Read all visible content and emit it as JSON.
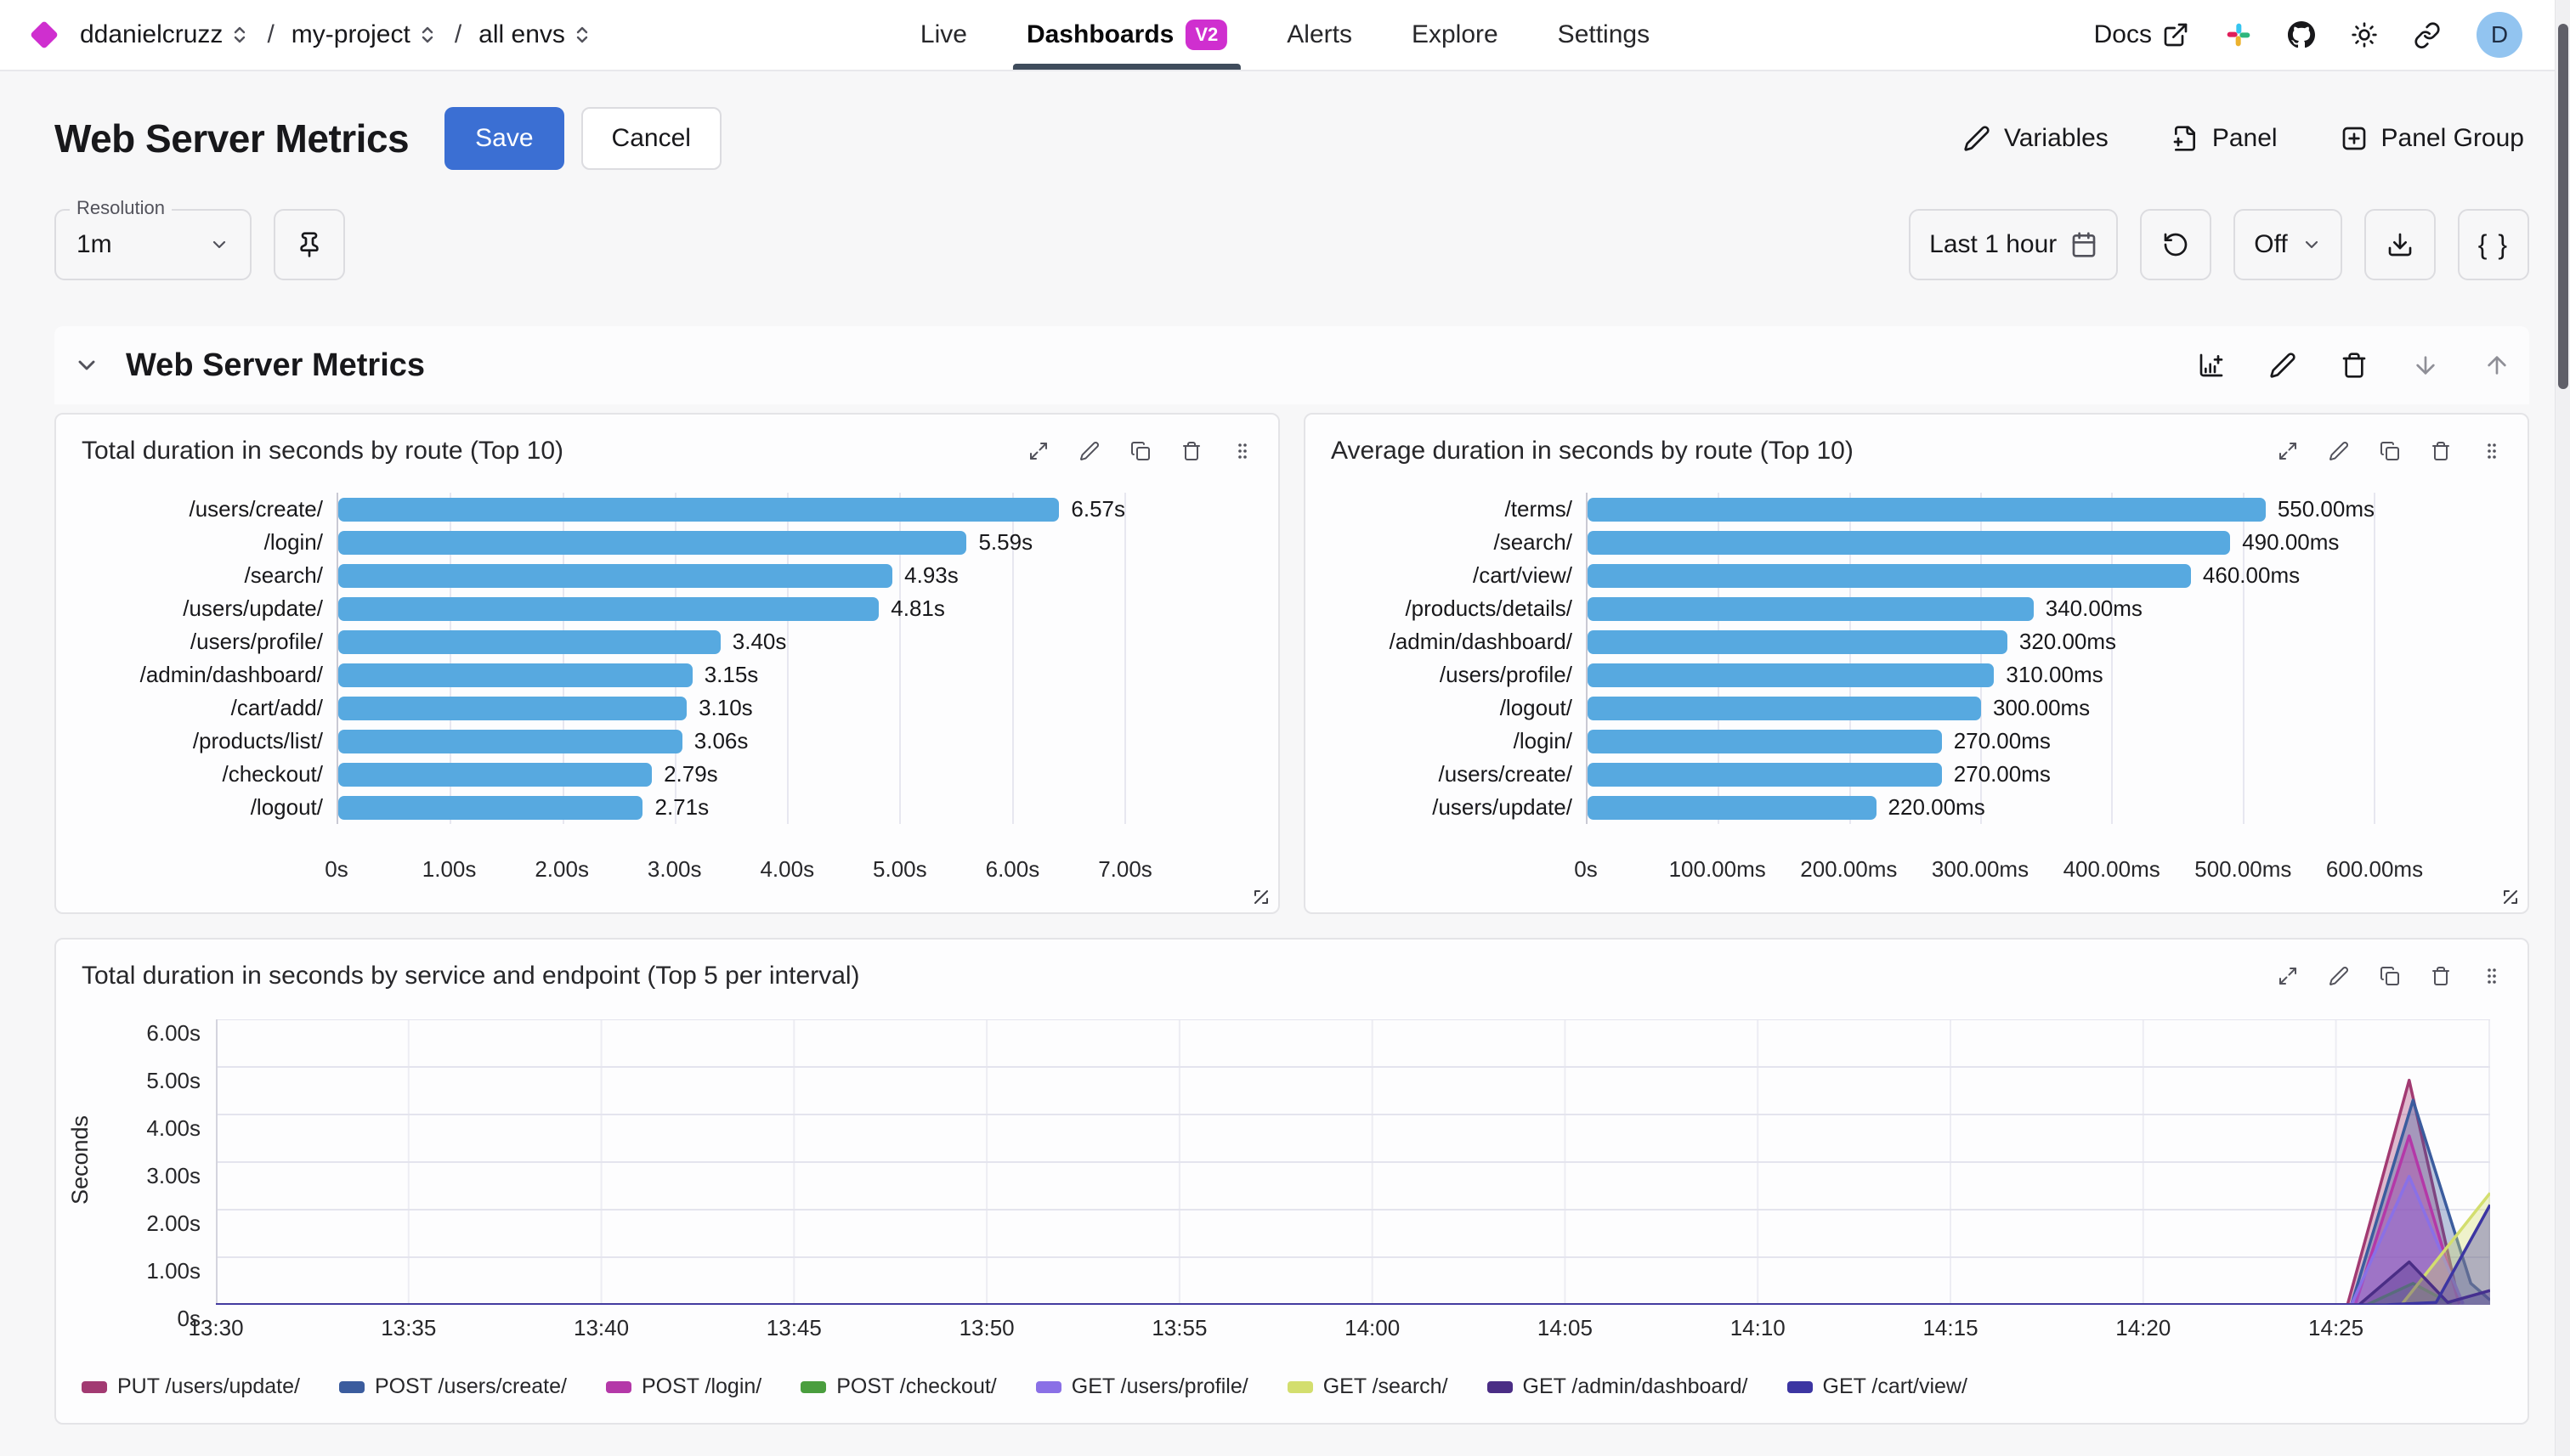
{
  "topbar": {
    "org": "ddanielcruzz",
    "project": "my-project",
    "env": "all envs",
    "separator": "/",
    "nav": [
      {
        "label": "Live"
      },
      {
        "label": "Dashboards",
        "badge": "V2"
      },
      {
        "label": "Alerts"
      },
      {
        "label": "Explore"
      },
      {
        "label": "Settings"
      }
    ],
    "docs_label": "Docs",
    "avatar_initial": "D"
  },
  "header": {
    "title": "Web Server Metrics",
    "save_label": "Save",
    "cancel_label": "Cancel",
    "variables_label": "Variables",
    "panel_label": "Panel",
    "panel_group_label": "Panel Group"
  },
  "toolbar": {
    "resolution_label": "Resolution",
    "resolution_value": "1m",
    "time_range": "Last 1 hour",
    "auto_refresh": "Off",
    "braces_label": "{ }"
  },
  "section": {
    "title": "Web Server Metrics"
  },
  "icons": [
    "chevrons-up-down-icon",
    "external-link-icon",
    "slack-icon",
    "github-icon",
    "sun-icon",
    "link-icon",
    "pencil-icon",
    "file-plus-icon",
    "square-plus-icon",
    "pin-icon",
    "calendar-icon",
    "rotate-ccw-icon",
    "chevron-down-icon",
    "download-icon",
    "chart-plus-icon",
    "trash-icon",
    "arrow-down-icon",
    "arrow-up-icon",
    "expand-icon",
    "copy-icon",
    "grip-icon",
    "resize-icon"
  ],
  "colors": {
    "accent_magenta": "#cf2fcf",
    "primary_button": "#3b6fd3",
    "bar_blue": "#57a9e0",
    "nav_underline": "#3f4c5c"
  },
  "chart_data": [
    {
      "type": "bar",
      "orientation": "horizontal",
      "title": "Total duration in seconds by route (Top 10)",
      "categories": [
        "/users/create/",
        "/login/",
        "/search/",
        "/users/update/",
        "/users/profile/",
        "/admin/dashboard/",
        "/cart/add/",
        "/products/list/",
        "/checkout/",
        "/logout/"
      ],
      "values": [
        6.57,
        5.59,
        4.93,
        4.81,
        3.4,
        3.15,
        3.1,
        3.06,
        2.79,
        2.71
      ],
      "value_labels": [
        "6.57s",
        "5.59s",
        "4.93s",
        "4.81s",
        "3.40s",
        "3.15s",
        "3.10s",
        "3.06s",
        "2.79s",
        "2.71s"
      ],
      "xmax": 7,
      "xticks": [
        "0s",
        "1.00s",
        "2.00s",
        "3.00s",
        "4.00s",
        "5.00s",
        "6.00s",
        "7.00s"
      ],
      "bar_color": "#57a9e0",
      "grid": true
    },
    {
      "type": "bar",
      "orientation": "horizontal",
      "title": "Average duration in seconds by route (Top 10)",
      "categories": [
        "/terms/",
        "/search/",
        "/cart/view/",
        "/products/details/",
        "/admin/dashboard/",
        "/users/profile/",
        "/logout/",
        "/login/",
        "/users/create/",
        "/users/update/"
      ],
      "values": [
        550,
        490,
        460,
        340,
        320,
        310,
        300,
        270,
        270,
        220
      ],
      "value_labels": [
        "550.00ms",
        "490.00ms",
        "460.00ms",
        "340.00ms",
        "320.00ms",
        "310.00ms",
        "300.00ms",
        "270.00ms",
        "270.00ms",
        "220.00ms"
      ],
      "xmax": 600,
      "xticks": [
        "0s",
        "100.00ms",
        "200.00ms",
        "300.00ms",
        "400.00ms",
        "500.00ms",
        "600.00ms"
      ],
      "bar_color": "#57a9e0",
      "grid": true
    },
    {
      "type": "area",
      "title": "Total duration in seconds by service and endpoint (Top 5 per interval)",
      "ylabel": "Seconds",
      "yticks": [
        "0s",
        "1.00s",
        "2.00s",
        "3.00s",
        "4.00s",
        "5.00s",
        "6.00s"
      ],
      "ymax": 6,
      "xdomain": [
        0,
        59
      ],
      "xtick_minutes": [
        0,
        5,
        10,
        15,
        20,
        25,
        30,
        35,
        40,
        45,
        50,
        55
      ],
      "xtick_labels": [
        "13:30",
        "13:35",
        "13:40",
        "13:45",
        "13:50",
        "13:55",
        "14:00",
        "14:05",
        "14:10",
        "14:15",
        "14:20",
        "14:25"
      ],
      "legend_position": "bottom",
      "grid": true,
      "series": [
        {
          "name": "PUT /users/update/",
          "color": "#a23a72",
          "points": [
            [
              0,
              0
            ],
            [
              55.3,
              0
            ],
            [
              56.9,
              4.72
            ],
            [
              58.2,
              0.02
            ]
          ]
        },
        {
          "name": "POST /users/create/",
          "color": "#3b5c9e",
          "points": [
            [
              0,
              0
            ],
            [
              55.4,
              0
            ],
            [
              57.0,
              4.3
            ],
            [
              58.5,
              0.45
            ],
            [
              59,
              0.1
            ]
          ]
        },
        {
          "name": "POST /login/",
          "color": "#b438a8",
          "points": [
            [
              0,
              0
            ],
            [
              55.5,
              0
            ],
            [
              56.9,
              3.55
            ],
            [
              58.2,
              0.02
            ]
          ]
        },
        {
          "name": "POST /checkout/",
          "color": "#4a9e3e",
          "points": [
            [
              0,
              0
            ],
            [
              55.8,
              0
            ],
            [
              57.0,
              0.45
            ],
            [
              58.0,
              0.02
            ]
          ]
        },
        {
          "name": "GET /users/profile/",
          "color": "#8a70e6",
          "points": [
            [
              0,
              0
            ],
            [
              55.4,
              0
            ],
            [
              56.9,
              2.7
            ],
            [
              58.3,
              0.02
            ]
          ]
        },
        {
          "name": "GET /search/",
          "color": "#d3de6e",
          "points": [
            [
              0,
              0
            ],
            [
              56.7,
              0
            ],
            [
              59,
              2.35
            ]
          ]
        },
        {
          "name": "GET /admin/dashboard/",
          "color": "#4a2d85",
          "points": [
            [
              0,
              0
            ],
            [
              55.6,
              0
            ],
            [
              56.9,
              0.9
            ],
            [
              57.9,
              0.05
            ],
            [
              59,
              0.3
            ]
          ]
        },
        {
          "name": "GET /cart/view/",
          "color": "#3c35a2",
          "points": [
            [
              0,
              0
            ],
            [
              56.3,
              0
            ],
            [
              57.6,
              0.05
            ],
            [
              59,
              2.1
            ]
          ]
        }
      ]
    }
  ]
}
